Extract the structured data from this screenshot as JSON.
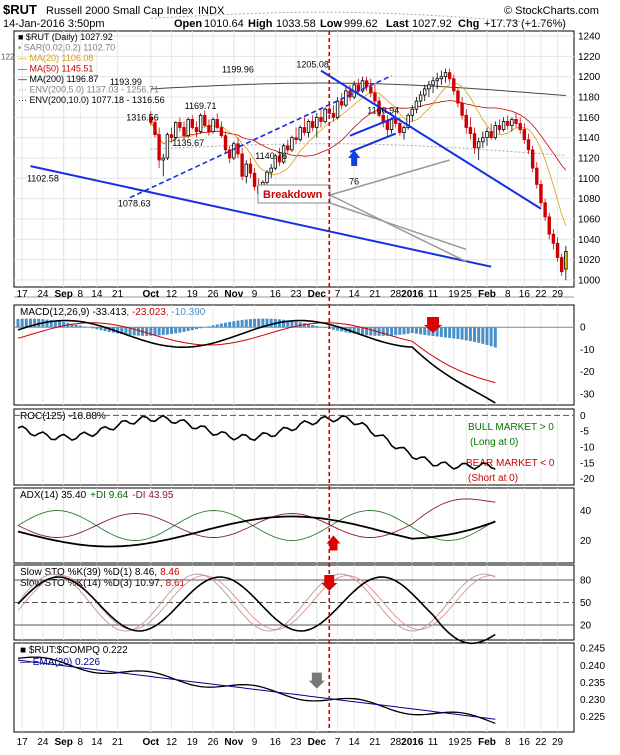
{
  "header": {
    "symbol": "$RUT",
    "name": "Russell 2000 Small Cap Index",
    "exchange": "INDX",
    "watermark": "© StockCharts.com",
    "date": "14-Jan-2016 3:50pm",
    "open_label": "Open",
    "open": "1010.64",
    "high_label": "High",
    "high": "1033.58",
    "low_label": "Low",
    "low": "999.62",
    "last_label": "Last",
    "last": "1027.92",
    "chg_label": "Chg",
    "chg": "+17.73 (+1.76%)"
  },
  "x_axis": {
    "labels": [
      {
        "t": "17",
        "i": 1
      },
      {
        "t": "24",
        "i": 6
      },
      {
        "t": "Sep",
        "i": 11,
        "b": true
      },
      {
        "t": "8",
        "i": 15
      },
      {
        "t": "14",
        "i": 19
      },
      {
        "t": "21",
        "i": 24
      },
      {
        "t": "Oct",
        "i": 32,
        "b": true
      },
      {
        "t": "12",
        "i": 37
      },
      {
        "t": "19",
        "i": 42
      },
      {
        "t": "26",
        "i": 47
      },
      {
        "t": "Nov",
        "i": 52,
        "b": true
      },
      {
        "t": "9",
        "i": 57
      },
      {
        "t": "16",
        "i": 62
      },
      {
        "t": "23",
        "i": 67
      },
      {
        "t": "Dec",
        "i": 72,
        "b": true
      },
      {
        "t": "7",
        "i": 77
      },
      {
        "t": "14",
        "i": 81
      },
      {
        "t": "21",
        "i": 86
      },
      {
        "t": "28",
        "i": 91
      },
      {
        "t": "2016",
        "i": 95,
        "b": true
      },
      {
        "t": "11",
        "i": 100
      },
      {
        "t": "19",
        "i": 105
      },
      {
        "t": "25",
        "i": 108
      },
      {
        "t": "Feb",
        "i": 113,
        "b": true
      },
      {
        "t": "8",
        "i": 118
      },
      {
        "t": "16",
        "i": 122
      },
      {
        "t": "22",
        "i": 126
      },
      {
        "t": "29",
        "i": 130
      }
    ],
    "breakdown_index": 75
  },
  "price_panel": {
    "legend": [
      {
        "t": "■ $RUT (Daily) 1027.92",
        "c": "#000000"
      },
      {
        "t": "▪ SAR(0.02,0.2) 1102.70",
        "c": "#808080"
      },
      {
        "t": "— MA(20) 1106.08",
        "c": "#d4a017"
      },
      {
        "t": "— MA(50) 1145.51",
        "c": "#cc0000"
      },
      {
        "t": "— MA(200) 1196.87",
        "c": "#000000"
      },
      {
        "t": "··· ENV(200,5.0) 1137.03 - 1256.71",
        "c": "#808080"
      },
      {
        "t": "··· ENV(200,10.0) 1077.18 - 1316.56",
        "c": "#000000"
      }
    ],
    "y_ticks": [
      1000,
      1020,
      1040,
      1060,
      1080,
      1100,
      1120,
      1140,
      1160,
      1180,
      1200,
      1220,
      1240
    ],
    "ylim": [
      993,
      1245
    ],
    "label_1220": "122",
    "point_labels": [
      {
        "t": "1102.58",
        "i": 6,
        "v": 1097
      },
      {
        "t": "1078.63",
        "i": 28,
        "v": 1072
      },
      {
        "t": "1135.67",
        "i": 41,
        "v": 1132
      },
      {
        "t": "1199.96",
        "i": 53,
        "v": 1204
      },
      {
        "t": "1140.76",
        "i": 61,
        "v": 1119
      },
      {
        "t": "1205.08",
        "i": 71,
        "v": 1209
      },
      {
        "t": "1160.94",
        "i": 88,
        "v": 1164
      },
      {
        "t": "1193.99",
        "i": 26,
        "v": 1192
      },
      {
        "t": "1169.71",
        "i": 44,
        "v": 1168
      },
      {
        "t": "1316.56",
        "i": 30,
        "v": 1157
      },
      {
        "t": "76",
        "i": 81,
        "v": 1094
      }
    ],
    "breakdown_label": "Breakdown",
    "upper_label": "1256.71"
  },
  "chart_data": [
    {
      "type": "candlestick",
      "title": "$RUT Russell 2000 Small Cap Index (Daily)",
      "ohlc": [
        [
          1160,
          1166,
          1152,
          1155
        ],
        [
          1155,
          1158,
          1140,
          1143
        ],
        [
          1143,
          1150,
          1110,
          1118
        ],
        [
          1118,
          1124,
          1102,
          1120
        ],
        [
          1120,
          1145,
          1118,
          1143
        ],
        [
          1143,
          1150,
          1135,
          1140
        ],
        [
          1140,
          1156,
          1138,
          1155
        ],
        [
          1155,
          1160,
          1146,
          1150
        ],
        [
          1150,
          1156,
          1138,
          1142
        ],
        [
          1142,
          1160,
          1140,
          1158
        ],
        [
          1158,
          1162,
          1148,
          1150
        ],
        [
          1150,
          1156,
          1140,
          1146
        ],
        [
          1146,
          1164,
          1144,
          1162
        ],
        [
          1162,
          1167,
          1150,
          1152
        ],
        [
          1152,
          1158,
          1142,
          1146
        ],
        [
          1146,
          1160,
          1144,
          1158
        ],
        [
          1158,
          1164,
          1148,
          1150
        ],
        [
          1150,
          1156,
          1140,
          1142
        ],
        [
          1142,
          1146,
          1125,
          1128
        ],
        [
          1128,
          1132,
          1115,
          1120
        ],
        [
          1120,
          1136,
          1118,
          1134
        ],
        [
          1134,
          1140,
          1120,
          1124
        ],
        [
          1124,
          1130,
          1098,
          1102
        ],
        [
          1102,
          1118,
          1095,
          1114
        ],
        [
          1114,
          1120,
          1100,
          1105
        ],
        [
          1105,
          1110,
          1088,
          1092
        ],
        [
          1092,
          1100,
          1080,
          1085
        ],
        [
          1085,
          1098,
          1078,
          1096
        ],
        [
          1096,
          1108,
          1094,
          1106
        ],
        [
          1106,
          1114,
          1100,
          1110
        ],
        [
          1110,
          1124,
          1108,
          1122
        ],
        [
          1122,
          1130,
          1112,
          1116
        ],
        [
          1116,
          1134,
          1114,
          1132
        ],
        [
          1132,
          1138,
          1124,
          1128
        ],
        [
          1128,
          1142,
          1126,
          1140
        ],
        [
          1140,
          1150,
          1134,
          1138
        ],
        [
          1138,
          1152,
          1136,
          1150
        ],
        [
          1150,
          1160,
          1142,
          1145
        ],
        [
          1145,
          1158,
          1140,
          1156
        ],
        [
          1156,
          1162,
          1146,
          1150
        ],
        [
          1150,
          1164,
          1140,
          1160
        ],
        [
          1160,
          1168,
          1150,
          1156
        ],
        [
          1156,
          1170,
          1154,
          1168
        ],
        [
          1168,
          1176,
          1160,
          1164
        ],
        [
          1164,
          1172,
          1156,
          1160
        ],
        [
          1160,
          1180,
          1158,
          1176
        ],
        [
          1176,
          1184,
          1168,
          1172
        ],
        [
          1172,
          1190,
          1170,
          1186
        ],
        [
          1186,
          1192,
          1176,
          1180
        ],
        [
          1180,
          1196,
          1178,
          1192
        ],
        [
          1192,
          1198,
          1182,
          1186
        ],
        [
          1186,
          1200,
          1184,
          1196
        ],
        [
          1196,
          1200,
          1186,
          1190
        ],
        [
          1190,
          1198,
          1180,
          1184
        ],
        [
          1184,
          1192,
          1172,
          1176
        ],
        [
          1176,
          1180,
          1160,
          1162
        ],
        [
          1162,
          1170,
          1150,
          1156
        ],
        [
          1156,
          1162,
          1142,
          1148
        ],
        [
          1148,
          1160,
          1144,
          1158
        ],
        [
          1158,
          1168,
          1150,
          1154
        ],
        [
          1154,
          1160,
          1142,
          1145
        ],
        [
          1145,
          1152,
          1138,
          1150
        ],
        [
          1150,
          1164,
          1148,
          1162
        ],
        [
          1162,
          1172,
          1156,
          1168
        ],
        [
          1168,
          1180,
          1164,
          1176
        ],
        [
          1176,
          1186,
          1170,
          1182
        ],
        [
          1182,
          1192,
          1176,
          1188
        ],
        [
          1188,
          1196,
          1180,
          1192
        ],
        [
          1192,
          1200,
          1184,
          1196
        ],
        [
          1196,
          1204,
          1188,
          1198
        ],
        [
          1198,
          1206,
          1192,
          1200
        ],
        [
          1200,
          1208,
          1194,
          1204
        ],
        [
          1204,
          1208,
          1194,
          1198
        ],
        [
          1198,
          1202,
          1182,
          1186
        ],
        [
          1186,
          1190,
          1170,
          1174
        ],
        [
          1174,
          1180,
          1158,
          1162
        ],
        [
          1162,
          1168,
          1144,
          1150
        ],
        [
          1150,
          1160,
          1138,
          1144
        ],
        [
          1144,
          1150,
          1124,
          1130
        ],
        [
          1130,
          1140,
          1118,
          1136
        ],
        [
          1136,
          1146,
          1130,
          1140
        ],
        [
          1140,
          1150,
          1132,
          1146
        ],
        [
          1146,
          1154,
          1138,
          1140
        ],
        [
          1140,
          1156,
          1138,
          1152
        ],
        [
          1152,
          1158,
          1144,
          1148
        ],
        [
          1148,
          1160,
          1146,
          1156
        ],
        [
          1156,
          1162,
          1148,
          1152
        ],
        [
          1152,
          1160,
          1146,
          1158
        ],
        [
          1158,
          1164,
          1150,
          1154
        ],
        [
          1154,
          1160,
          1144,
          1148
        ],
        [
          1148,
          1154,
          1134,
          1138
        ],
        [
          1138,
          1144,
          1124,
          1128
        ],
        [
          1128,
          1132,
          1106,
          1110
        ],
        [
          1110,
          1116,
          1090,
          1094
        ],
        [
          1094,
          1098,
          1072,
          1076
        ],
        [
          1076,
          1080,
          1058,
          1062
        ],
        [
          1062,
          1066,
          1040,
          1045
        ],
        [
          1045,
          1050,
          1030,
          1036
        ],
        [
          1036,
          1042,
          1018,
          1022
        ],
        [
          1022,
          1026,
          1004,
          1008
        ],
        [
          1010.64,
          1033.58,
          999.62,
          1027.92
        ]
      ],
      "ylim": [
        993,
        1245
      ]
    },
    {
      "type": "line",
      "title": "MACD(12,26,9) -33.413, -23.023, -10.390",
      "values": {
        "macd": -33.413,
        "signal": -23.023,
        "histogram": -10.39
      },
      "ylim": [
        -35,
        10
      ],
      "y_ticks": [
        0,
        -10,
        -20,
        -30
      ]
    },
    {
      "type": "line",
      "title": "ROC(125) -18.88%",
      "value": -18.88,
      "ylim": [
        -22,
        2
      ],
      "y_ticks": [
        0,
        -5,
        -10,
        -15,
        -20
      ],
      "annotations": [
        "BULL MARKET > 0",
        "(Long at 0)",
        "BEAR MARKET < 0",
        "(Short at 0)"
      ]
    },
    {
      "type": "line",
      "title": "ADX(14) 35.40 +DI 9.64 -DI 43.95",
      "values": {
        "adx": 35.4,
        "plus_di": 9.64,
        "minus_di": 43.95
      },
      "ylim": [
        5,
        55
      ],
      "y_ticks": [
        40,
        20
      ]
    },
    {
      "type": "line",
      "title": "Slow STO %K(39) %D(1) 8.46, 8.46 / Slow STO %K(14) %D(3) 10.97, 8.61",
      "values": {
        "k39": 8.46,
        "d1": 8.46,
        "k14": 10.97,
        "d3": 8.61
      },
      "ylim": [
        0,
        100
      ],
      "y_ticks": [
        80,
        50,
        20
      ]
    },
    {
      "type": "line",
      "title": "$RUT:$COMPQ 0.222 / EMA(20) 0.226",
      "values": {
        "ratio": 0.222,
        "ema20": 0.226
      },
      "ylim": [
        0.2205,
        0.2465
      ],
      "y_ticks": [
        0.245,
        0.24,
        0.235,
        0.23,
        0.225
      ]
    }
  ],
  "macd_panel": {
    "t1": "MACD(12,26,9)",
    "t2": "-33.413",
    "t3": ", -23.023",
    "t4": ", -10.390"
  },
  "roc_panel": {
    "t1": "ROC(125)",
    "t2": "-18.88%",
    "bull": "BULL MARKET > 0",
    "bull_sub": "(Long at 0)",
    "bear": "BEAR MARKET < 0",
    "bear_sub": "(Short at 0)"
  },
  "adx_panel": {
    "t1": "ADX(14) 35.40",
    "t2": "+DI 9.64",
    "t3": "-DI 43.95"
  },
  "sto_panel": {
    "t1": "Slow STO %K(39) %D(1) 8.46,",
    "t1b": "8.46",
    "t2": "Slow STO %K(14) %D(3) 10.97,",
    "t2b": "8.61"
  },
  "ratio_panel": {
    "t1": "■ $RUT:$COMPQ 0.222",
    "t2": "— EMA(20) 0.226"
  },
  "colors": {
    "up": "#000000",
    "down": "#cc0000",
    "macd_hist": "#4a90c8",
    "arrow_red": "#dd0000",
    "arrow_blue": "#1040e0",
    "trend_blue": "#1430e0",
    "bull_green": "#007700",
    "bear_red": "#cc0000"
  }
}
